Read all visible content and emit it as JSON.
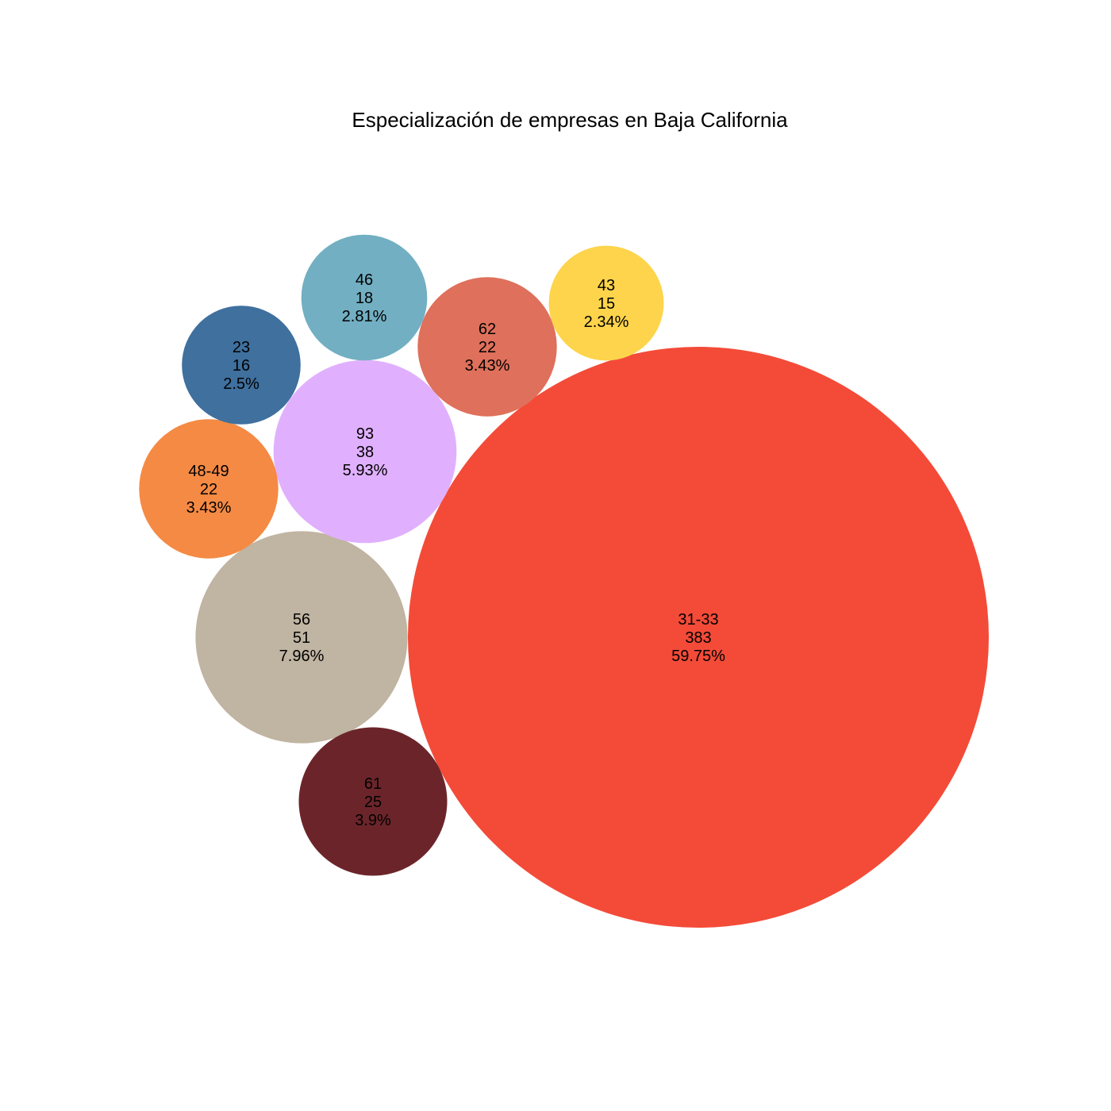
{
  "chart_data": {
    "type": "bubble",
    "title": "Especialización de empresas en Baja California",
    "bubbles": [
      {
        "category": "31-33",
        "count": 383,
        "percent": "59.75%",
        "color": "#f34b38"
      },
      {
        "category": "56",
        "count": 51,
        "percent": "7.96%",
        "color": "#c0b4a2"
      },
      {
        "category": "93",
        "count": 38,
        "percent": "5.93%",
        "color": "#e0b0fe"
      },
      {
        "category": "61",
        "count": 25,
        "percent": "3.9%",
        "color": "#6b252a"
      },
      {
        "category": "48-49",
        "count": 22,
        "percent": "3.43%",
        "color": "#f58a44"
      },
      {
        "category": "62",
        "count": 22,
        "percent": "3.43%",
        "color": "#df705b"
      },
      {
        "category": "46",
        "count": 18,
        "percent": "2.81%",
        "color": "#72afc2"
      },
      {
        "category": "23",
        "count": 16,
        "percent": "2.5%",
        "color": "#3f709e"
      },
      {
        "category": "43",
        "count": 15,
        "percent": "2.34%",
        "color": "#fdd44b"
      }
    ]
  }
}
